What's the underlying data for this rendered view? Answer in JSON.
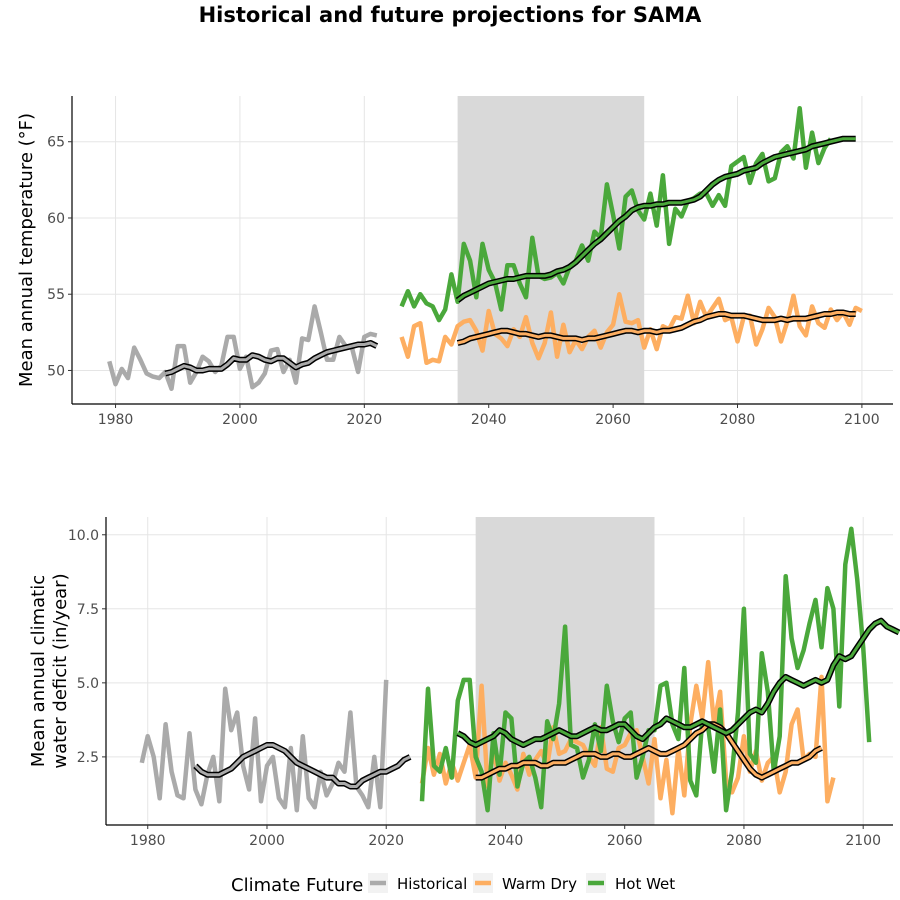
{
  "title": "Historical and future projections for SAMA",
  "colors": {
    "Historical": "#aaaaaa",
    "Warm Dry": "#fdae61",
    "Hot Wet": "#4aa83b",
    "smooth": "#000000",
    "band": "#d9d9d9",
    "grid": "#e5e5e5"
  },
  "legend": {
    "title": "Climate Future",
    "items": [
      "Historical",
      "Warm Dry",
      "Hot Wet"
    ]
  },
  "chart_data": [
    {
      "type": "line",
      "ylabel": "Mean annual temperature (°F)",
      "xlim": [
        1973,
        2105
      ],
      "ylim": [
        47.8,
        68
      ],
      "xticks": [
        1980,
        2000,
        2020,
        2040,
        2060,
        2080,
        2100
      ],
      "yticks": [
        50,
        55,
        60,
        65
      ],
      "band": [
        2035,
        2065
      ],
      "series": [
        {
          "name": "Historical",
          "x_start": 1979,
          "values": [
            50.6,
            49.1,
            50.1,
            49.5,
            51.5,
            50.7,
            49.8,
            49.6,
            49.5,
            49.9,
            48.8,
            51.6,
            51.6,
            49.2,
            49.9,
            50.9,
            50.6,
            49.9,
            50.3,
            52.2,
            52.2,
            50.1,
            50.9,
            48.9,
            49.2,
            49.8,
            51.3,
            51.4,
            49.9,
            50.7,
            49.2,
            52.1,
            52.0,
            54.2,
            52.5,
            50.7,
            50.7,
            52.2,
            51.6,
            51.5,
            49.9,
            52.2,
            52.4,
            52.3
          ],
          "smooth_start": 1988,
          "smooth": [
            49.8,
            49.9,
            50.1,
            50.3,
            50.2,
            50.0,
            50.0,
            50.1,
            50.1,
            50.1,
            50.4,
            50.8,
            50.7,
            50.7,
            51.0,
            50.9,
            50.7,
            50.6,
            50.8,
            50.8,
            50.5,
            50.2,
            50.4,
            50.5,
            50.8,
            51.0,
            51.2,
            51.3,
            51.4,
            51.5,
            51.6,
            51.7,
            51.7,
            51.8,
            51.6
          ]
        },
        {
          "name": "Warm Dry",
          "x_start": 2026,
          "values": [
            52.2,
            50.9,
            52.9,
            53.1,
            50.5,
            50.7,
            50.6,
            52.2,
            51.7,
            52.9,
            53.2,
            53.3,
            52.6,
            51.3,
            53.9,
            52.4,
            52.1,
            51.6,
            52.7,
            52.2,
            53.5,
            51.8,
            50.8,
            51.8,
            53.8,
            50.9,
            53.0,
            51.2,
            52.0,
            51.4,
            52.2,
            52.6,
            51.5,
            52.5,
            53.0,
            55.0,
            53.2,
            53.1,
            53.3,
            51.5,
            52.7,
            51.4,
            52.9,
            52.7,
            53.5,
            53.4,
            54.9,
            53.1,
            54.5,
            53.5,
            54.1,
            54.7,
            53.3,
            53.5,
            51.9,
            53.5,
            53.6,
            51.7,
            52.7,
            54.1,
            53.5,
            51.9,
            53.2,
            54.9,
            52.9,
            52.3,
            54.2,
            53.1,
            52.8,
            54.0,
            53.3,
            53.8,
            53.0,
            54.1,
            53.9
          ],
          "smooth_start": 2035,
          "smooth": [
            51.8,
            51.9,
            52.1,
            52.2,
            52.3,
            52.4,
            52.5,
            52.6,
            52.6,
            52.5,
            52.4,
            52.4,
            52.3,
            52.2,
            52.3,
            52.3,
            52.2,
            52.1,
            52.1,
            52.1,
            52.0,
            52.1,
            52.1,
            52.2,
            52.3,
            52.4,
            52.5,
            52.6,
            52.6,
            52.5,
            52.6,
            52.6,
            52.5,
            52.6,
            52.6,
            52.7,
            52.8,
            53.0,
            53.2,
            53.3,
            53.5,
            53.6,
            53.7,
            53.7,
            53.6,
            53.6,
            53.6,
            53.5,
            53.4,
            53.3,
            53.3,
            53.3,
            53.4,
            53.3,
            53.4,
            53.4,
            53.4,
            53.5,
            53.6,
            53.7,
            53.7,
            53.8,
            53.8,
            53.7,
            53.7
          ]
        },
        {
          "name": "Hot Wet",
          "x_start": 2026,
          "values": [
            54.2,
            55.2,
            54.2,
            55.0,
            54.4,
            54.2,
            53.3,
            54.0,
            56.3,
            54.5,
            58.3,
            57.2,
            54.8,
            58.3,
            56.6,
            55.8,
            54.0,
            56.9,
            56.9,
            55.7,
            54.8,
            58.7,
            56.2,
            56.0,
            56.1,
            56.4,
            55.7,
            56.8,
            57.2,
            58.2,
            57.2,
            59.1,
            58.7,
            62.2,
            60.2,
            58.0,
            61.4,
            61.8,
            60.5,
            59.9,
            61.6,
            59.5,
            62.8,
            58.3,
            60.6,
            60.1,
            61.1,
            61.3,
            61.6,
            61.6,
            60.8,
            61.5,
            60.8,
            63.4,
            63.7,
            64.0,
            62.3,
            63.6,
            64.2,
            62.4,
            62.6,
            64.3,
            64.7,
            63.9,
            67.2,
            63.3,
            65.6,
            63.6,
            64.6,
            65.2
          ],
          "smooth_start": 2035,
          "smooth": [
            54.6,
            54.9,
            55.1,
            55.3,
            55.5,
            55.7,
            55.8,
            55.9,
            56.0,
            56.0,
            56.1,
            56.2,
            56.2,
            56.2,
            56.2,
            56.3,
            56.5,
            56.6,
            56.8,
            57.1,
            57.5,
            57.9,
            58.3,
            58.6,
            59.0,
            59.4,
            59.8,
            60.1,
            60.5,
            60.7,
            60.8,
            60.8,
            60.9,
            60.9,
            61.0,
            61.0,
            61.0,
            61.1,
            61.2,
            61.4,
            61.8,
            62.2,
            62.5,
            62.7,
            62.8,
            62.9,
            63.1,
            63.2,
            63.3,
            63.6,
            63.8,
            64.0,
            64.1,
            64.2,
            64.3,
            64.4,
            64.5,
            64.7,
            64.8,
            64.9,
            65.0,
            65.1,
            65.2,
            65.2,
            65.2
          ]
        }
      ]
    },
    {
      "type": "line",
      "ylabel": "Mean annual climatic water deficit (in/year)",
      "xlim": [
        1973,
        2105
      ],
      "ylim": [
        0.2,
        10.6
      ],
      "xticks": [
        1980,
        2000,
        2020,
        2040,
        2060,
        2080,
        2100
      ],
      "yticks": [
        2.5,
        5.0,
        7.5,
        10.0
      ],
      "ytick_labels": [
        "2.5",
        "5.0",
        "7.5",
        "10.0"
      ],
      "band": [
        2035,
        2065
      ],
      "series": [
        {
          "name": "Historical",
          "x_start": 1979,
          "values": [
            2.3,
            3.2,
            2.5,
            1.1,
            3.6,
            2.0,
            1.2,
            1.1,
            3.3,
            1.4,
            0.9,
            1.9,
            2.5,
            1.0,
            4.8,
            3.4,
            4.0,
            2.2,
            1.4,
            3.8,
            1.0,
            2.2,
            2.5,
            1.1,
            0.8,
            2.8,
            0.7,
            3.2,
            1.1,
            0.8,
            2.0,
            1.2,
            1.6,
            2.3,
            2.0,
            4.0,
            1.5,
            1.2,
            0.8,
            2.5,
            0.8,
            5.1
          ],
          "smooth_start": 1988,
          "smooth": [
            2.2,
            2.0,
            1.9,
            1.9,
            1.9,
            2.0,
            2.1,
            2.3,
            2.5,
            2.6,
            2.7,
            2.8,
            2.9,
            2.9,
            2.8,
            2.7,
            2.5,
            2.3,
            2.2,
            2.1,
            2.0,
            1.9,
            1.8,
            1.8,
            1.6,
            1.6,
            1.5,
            1.5,
            1.7,
            1.8,
            1.9,
            2.0,
            2.0,
            2.1,
            2.2,
            2.4,
            2.5
          ]
        },
        {
          "name": "Warm Dry",
          "x_start": 2026,
          "values": [
            1.6,
            2.8,
            1.9,
            2.6,
            1.6,
            2.3,
            1.7,
            2.3,
            2.9,
            1.8,
            4.9,
            1.5,
            2.7,
            1.7,
            2.3,
            1.9,
            1.4,
            2.6,
            1.9,
            2.4,
            2.7,
            2.2,
            3.5,
            2.6,
            2.7,
            3.1,
            3.0,
            2.9,
            2.5,
            2.2,
            3.5,
            2.1,
            2.0,
            2.8,
            2.9,
            3.3,
            3.4,
            2.5,
            1.6,
            3.1,
            1.1,
            2.4,
            0.6,
            2.8,
            1.2,
            3.6,
            4.9,
            3.8,
            5.7,
            3.6,
            4.7,
            1.7,
            1.3,
            1.8,
            3.2,
            2.0,
            2.7,
            1.7,
            2.3,
            2.5,
            1.3,
            2.0,
            3.6,
            4.1,
            2.4,
            2.6,
            2.5,
            5.2,
            1.0,
            1.8
          ],
          "smooth_start": 2035,
          "smooth": [
            1.8,
            1.8,
            1.9,
            2.0,
            2.1,
            2.1,
            2.2,
            2.2,
            2.3,
            2.3,
            2.3,
            2.2,
            2.2,
            2.3,
            2.3,
            2.3,
            2.4,
            2.5,
            2.6,
            2.6,
            2.6,
            2.5,
            2.5,
            2.6,
            2.6,
            2.5,
            2.5,
            2.6,
            2.7,
            2.8,
            2.7,
            2.6,
            2.6,
            2.7,
            2.8,
            2.9,
            3.1,
            3.3,
            3.4,
            3.6,
            3.6,
            3.5,
            3.3,
            3.0,
            2.7,
            2.4,
            2.1,
            1.9,
            1.8,
            1.9,
            2.0,
            2.1,
            2.2,
            2.3,
            2.3,
            2.4,
            2.5,
            2.7,
            2.8
          ]
        },
        {
          "name": "Hot Wet",
          "x_start": 2026,
          "values": [
            1.0,
            4.8,
            2.2,
            2.0,
            2.8,
            1.8,
            4.4,
            5.1,
            5.1,
            2.5,
            2.0,
            0.7,
            3.3,
            1.9,
            4.0,
            3.8,
            1.5,
            2.3,
            2.5,
            1.8,
            0.8,
            3.7,
            3.1,
            4.3,
            6.9,
            2.9,
            2.8,
            1.8,
            2.4,
            3.6,
            2.7,
            4.9,
            3.7,
            3.0,
            3.8,
            4.0,
            1.8,
            2.5,
            3.4,
            3.4,
            4.9,
            5.0,
            3.6,
            3.1,
            5.5,
            1.7,
            1.2,
            3.7,
            3.5,
            2.0,
            4.1,
            0.7,
            2.0,
            4.0,
            7.5,
            2.6,
            2.3,
            6.0,
            4.7,
            2.0,
            3.2,
            8.6,
            6.5,
            5.5,
            6.1,
            7.0,
            7.8,
            6.2,
            8.2,
            7.5,
            4.2,
            9.0,
            10.2,
            8.5,
            6.2,
            3.0
          ],
          "smooth_start": 2032,
          "smooth": [
            3.3,
            3.2,
            3.0,
            2.9,
            3.0,
            3.1,
            3.2,
            3.4,
            3.3,
            3.1,
            3.0,
            2.9,
            3.0,
            3.1,
            3.1,
            3.2,
            3.3,
            3.4,
            3.3,
            3.2,
            3.2,
            3.3,
            3.4,
            3.5,
            3.4,
            3.4,
            3.5,
            3.6,
            3.6,
            3.4,
            3.2,
            3.1,
            3.3,
            3.5,
            3.6,
            3.8,
            3.7,
            3.6,
            3.5,
            3.5,
            3.6,
            3.7,
            3.6,
            3.5,
            3.4,
            3.3,
            3.4,
            3.6,
            3.8,
            4.0,
            4.1,
            4.0,
            4.3,
            4.7,
            5.0,
            5.2,
            5.1,
            5.0,
            4.9,
            5.0,
            5.1,
            5.0,
            5.1,
            5.6,
            5.9,
            5.8,
            5.9,
            6.2,
            6.5,
            6.8,
            7.0,
            7.1,
            6.9,
            6.8,
            6.7
          ]
        }
      ]
    }
  ]
}
